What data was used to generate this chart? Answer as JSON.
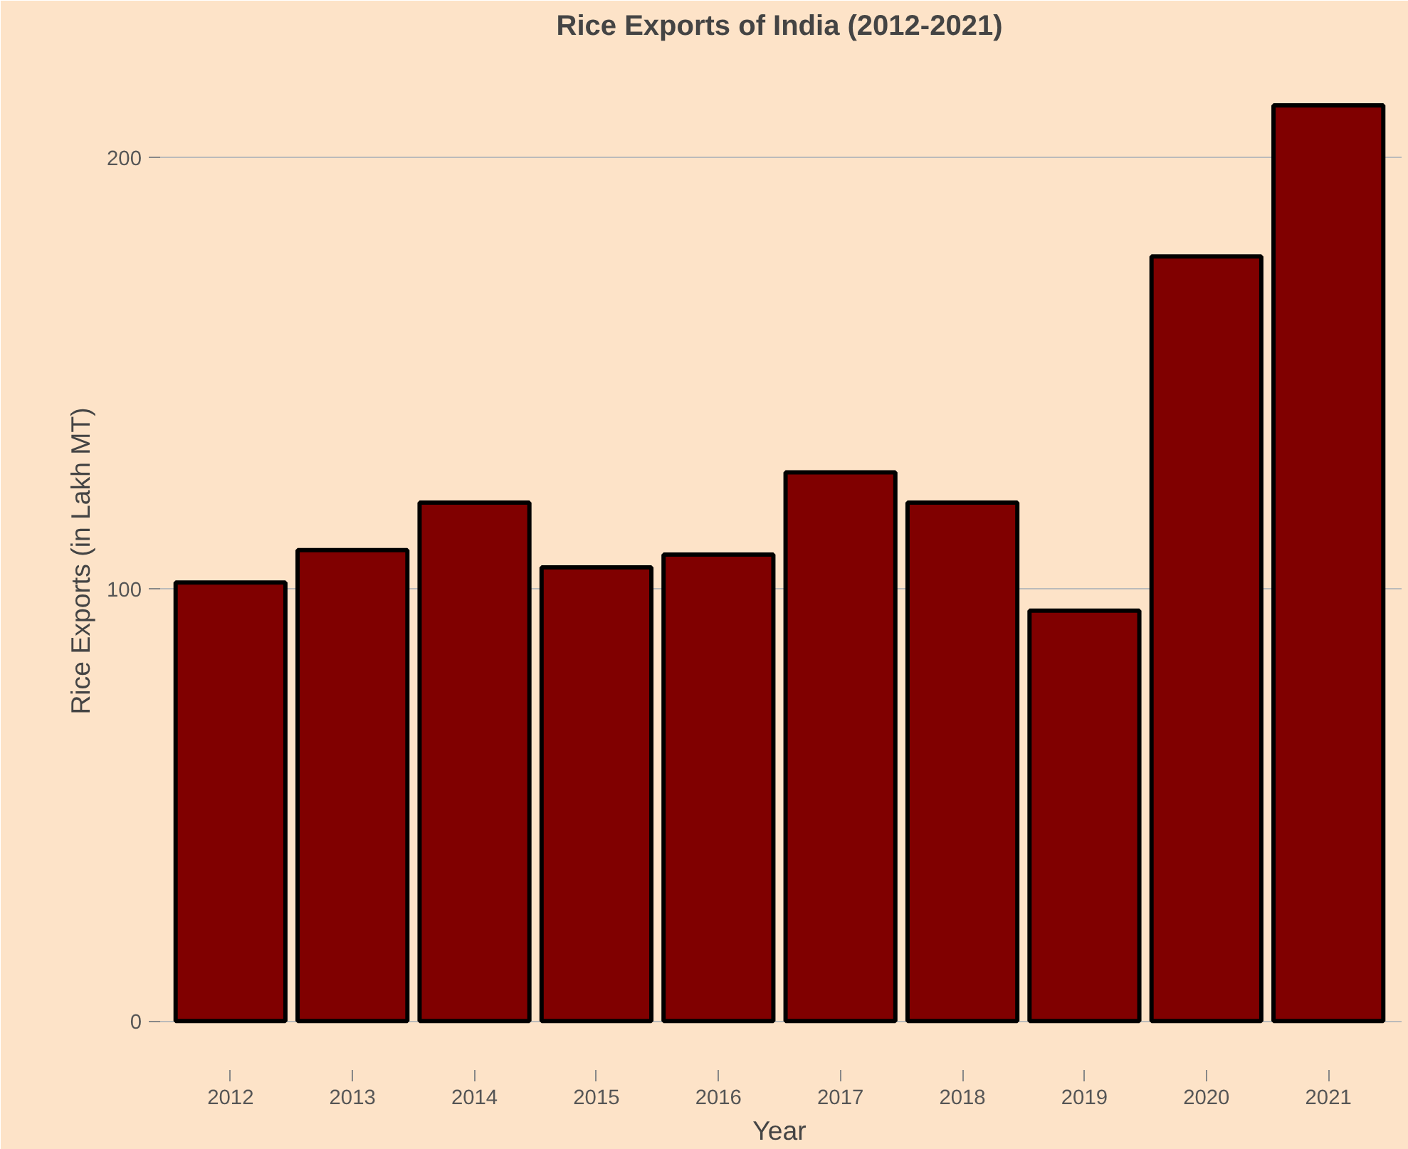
{
  "chart_data": {
    "type": "bar",
    "title": "Rice Exports of India (2012-2021)",
    "xlabel": "Year",
    "ylabel": "Rice Exports (in Lakh MT)",
    "categories": [
      "2012",
      "2013",
      "2014",
      "2015",
      "2016",
      "2017",
      "2018",
      "2019",
      "2020",
      "2021"
    ],
    "values": [
      101.5,
      109,
      120,
      105,
      108,
      127,
      120,
      95,
      177,
      212
    ],
    "color": "#800000",
    "ylim": [
      -12,
      225
    ],
    "yticks": [
      0,
      100,
      200
    ],
    "grid": "y"
  }
}
